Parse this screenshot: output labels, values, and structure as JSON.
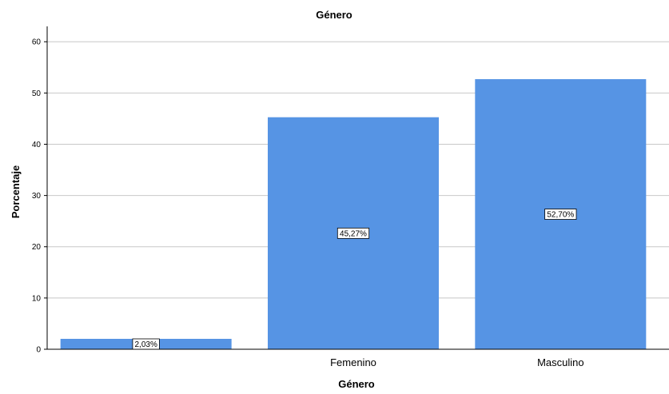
{
  "chart_data": {
    "type": "bar",
    "title": "Género",
    "xlabel": "Género",
    "ylabel": "Porcentaje",
    "categories": [
      "",
      "Femenino",
      "Masculino"
    ],
    "values": [
      2.03,
      45.27,
      52.7
    ],
    "data_labels": [
      "2,03%",
      "45,27%",
      "52,70%"
    ],
    "ylim": [
      0,
      63
    ],
    "yticks": [
      0,
      10,
      20,
      30,
      40,
      50,
      60
    ],
    "grid": true,
    "legend": "none",
    "colors": {
      "bar": "#5694E4",
      "grid": "#C8C8C8",
      "axis": "#000000",
      "background": "#FFFFFF"
    }
  }
}
